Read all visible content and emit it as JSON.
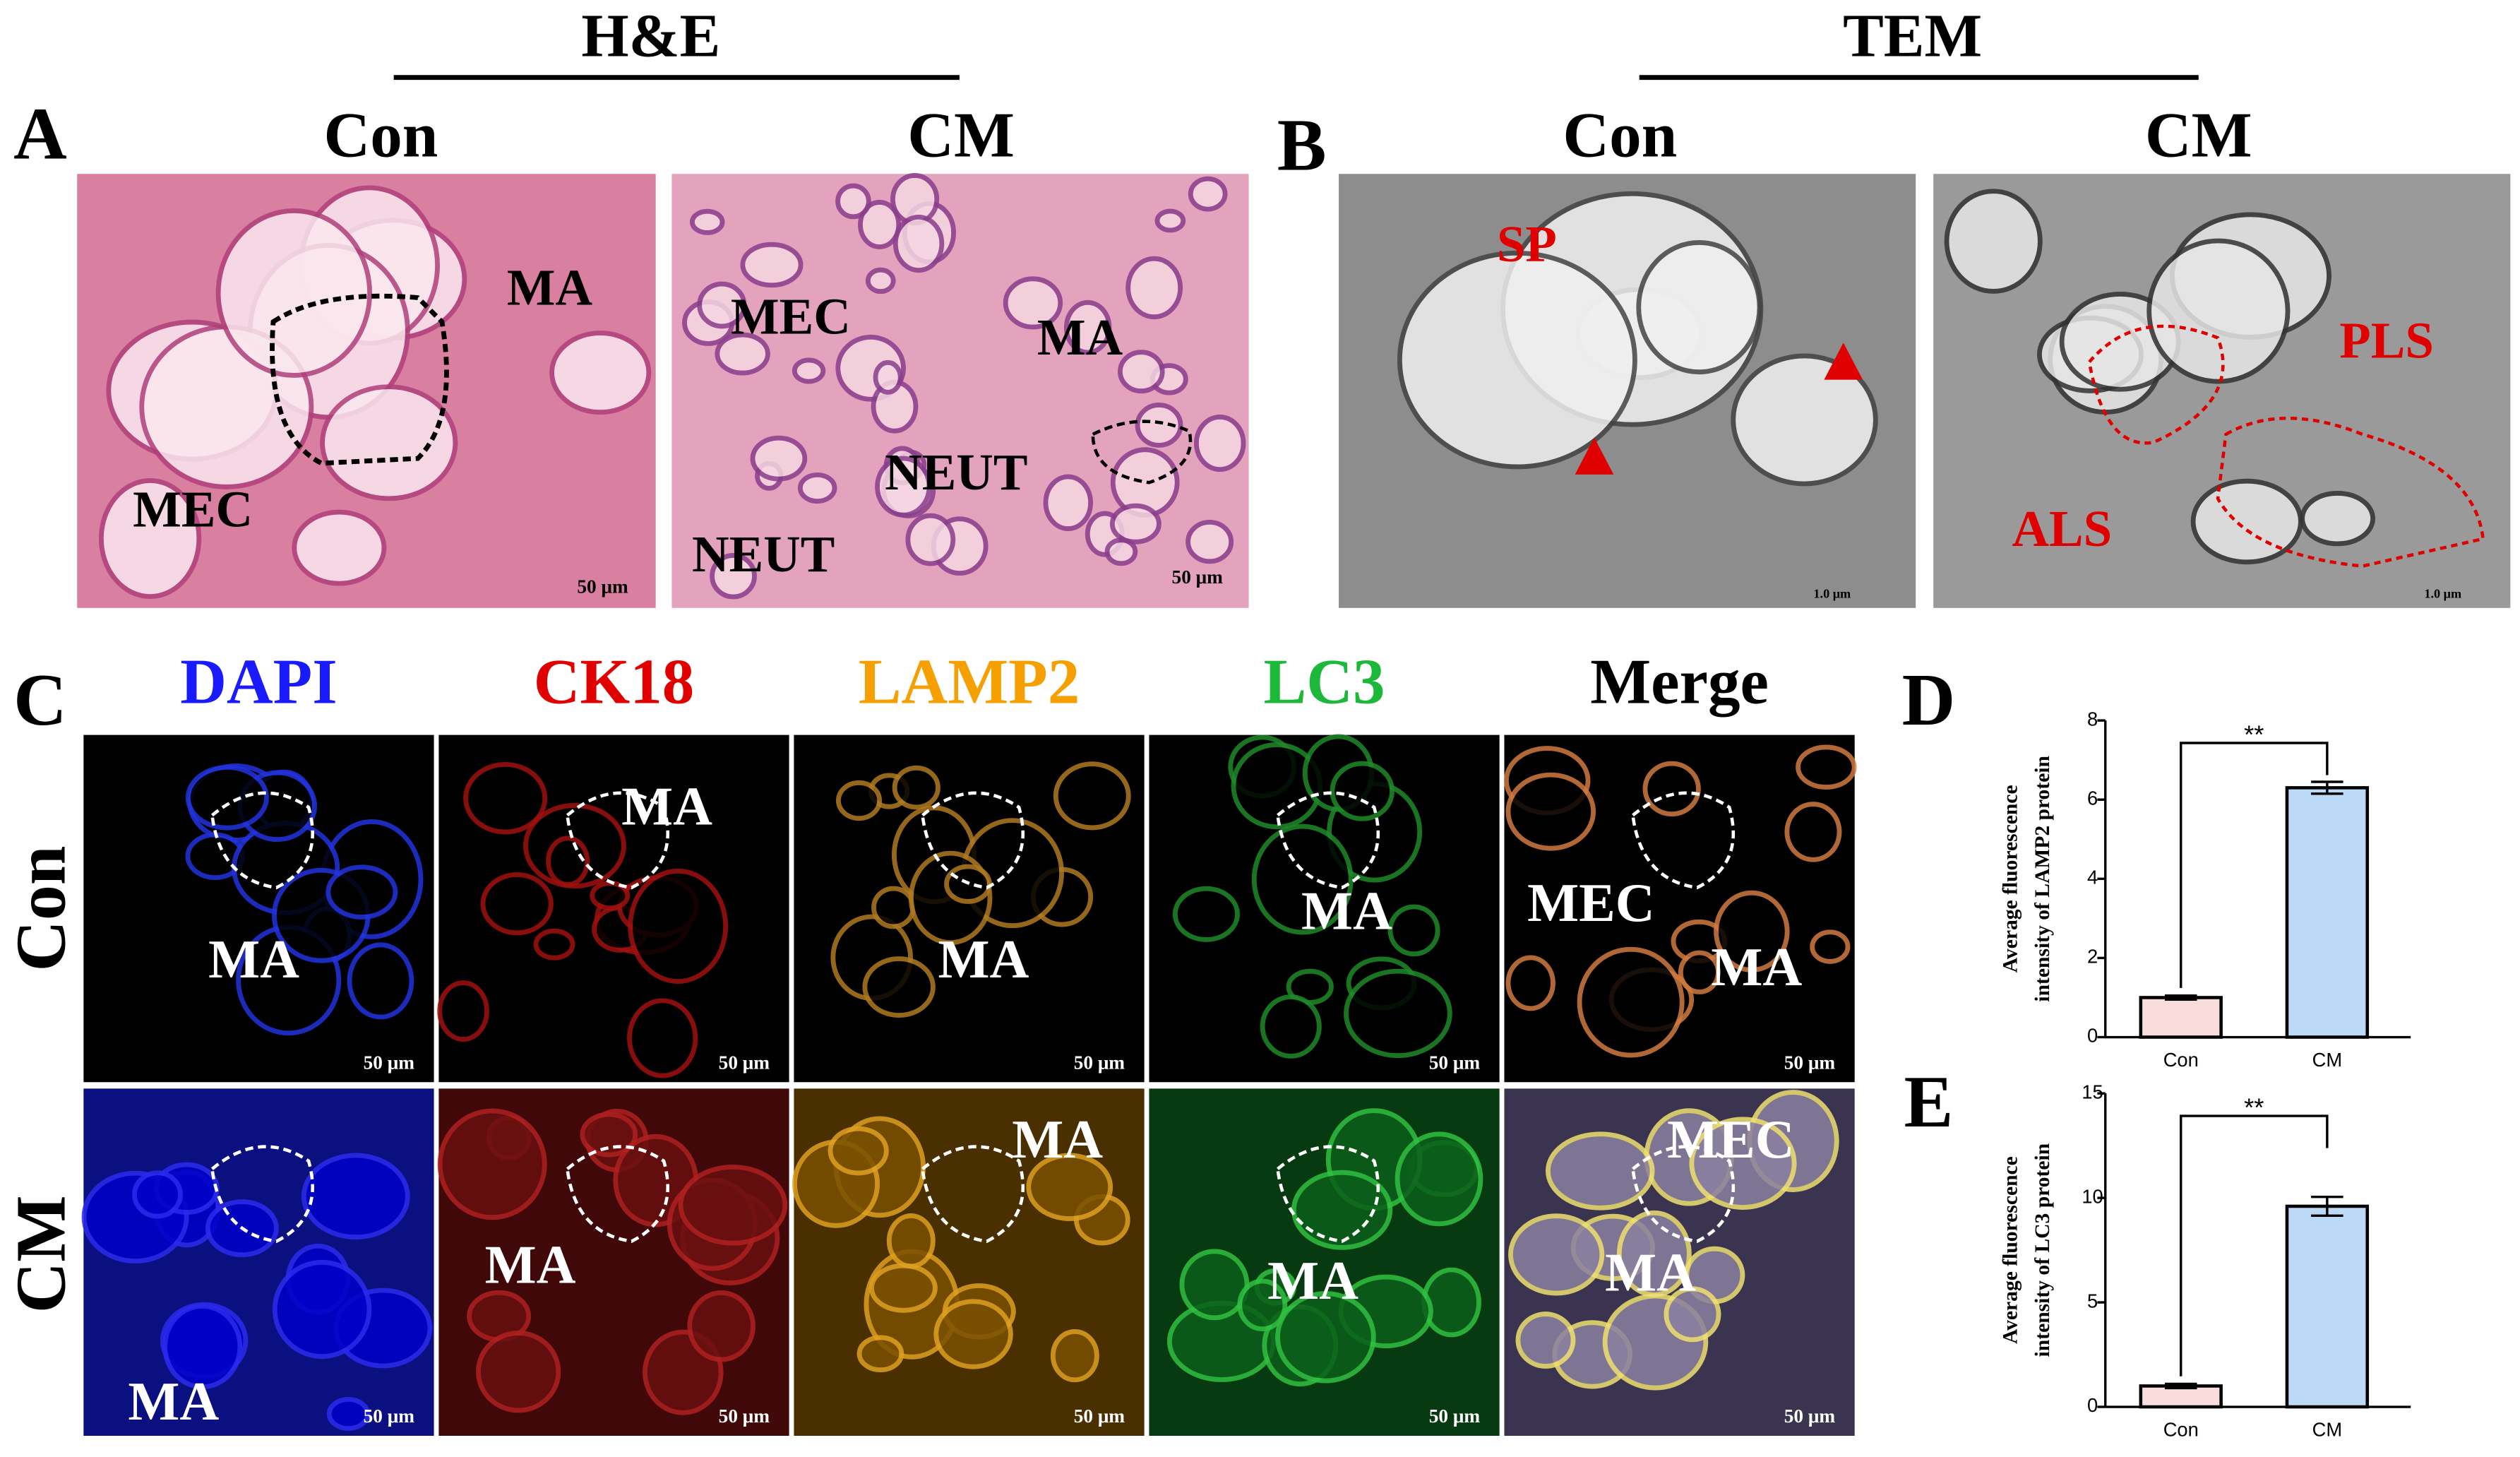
{
  "header": {
    "he": "H&E",
    "tem": "TEM"
  },
  "panel_letters": [
    "A",
    "B",
    "C",
    "D",
    "E"
  ],
  "he": {
    "con_title": "Con",
    "cm_title": "CM",
    "con_labels": [
      "MA",
      "MEC",
      "50 μm"
    ],
    "cm_labels": [
      "MEC",
      "MA",
      "NEUT",
      "NEUT",
      "50 μm"
    ]
  },
  "tem": {
    "con_title": "Con",
    "cm_title": "CM",
    "con_labels": [
      "SP",
      "1.0 μm"
    ],
    "cm_labels": [
      "PLS",
      "ALS",
      "1.0 μm"
    ]
  },
  "if": {
    "channels": [
      "DAPI",
      "CK18",
      "LAMP2",
      "LC3",
      "Merge"
    ],
    "rows": [
      "Con",
      "CM"
    ],
    "labels": [
      [
        [
          "MA",
          "50 μm"
        ],
        [
          "MA",
          "50 μm"
        ],
        [
          "MA",
          "50 μm"
        ],
        [
          "MA",
          "50 μm"
        ],
        [
          "MEC",
          "MA",
          "50 μm"
        ]
      ],
      [
        [
          "MA",
          "50 μm"
        ],
        [
          "MA",
          "50 μm"
        ],
        [
          "MA",
          "50 μm"
        ],
        [
          "MA",
          "50 μm"
        ],
        [
          "MEC",
          "MA",
          "50 μm"
        ]
      ]
    ]
  },
  "chart_data": [
    {
      "type": "bar",
      "ylabel": [
        "Average fluorescence",
        "intensity of LAMP2 protein"
      ],
      "categories": [
        "Con",
        "CM"
      ],
      "values": [
        1.0,
        6.3
      ],
      "errors": [
        0.05,
        0.15
      ],
      "colors": [
        "#f9dcdc",
        "#bcd9f5"
      ],
      "ylim": [
        0,
        8
      ],
      "yticks": [
        0,
        2,
        4,
        6,
        8
      ],
      "significance": "**"
    },
    {
      "type": "bar",
      "ylabel": [
        "Average fluorescence",
        "intensity of LC3 protein"
      ],
      "categories": [
        "Con",
        "CM"
      ],
      "values": [
        1.0,
        9.6
      ],
      "errors": [
        0.1,
        0.45
      ],
      "colors": [
        "#f9dcdc",
        "#bcd9f5"
      ],
      "ylim": [
        0,
        15
      ],
      "yticks": [
        0,
        5,
        10,
        15
      ],
      "significance": "**"
    }
  ]
}
